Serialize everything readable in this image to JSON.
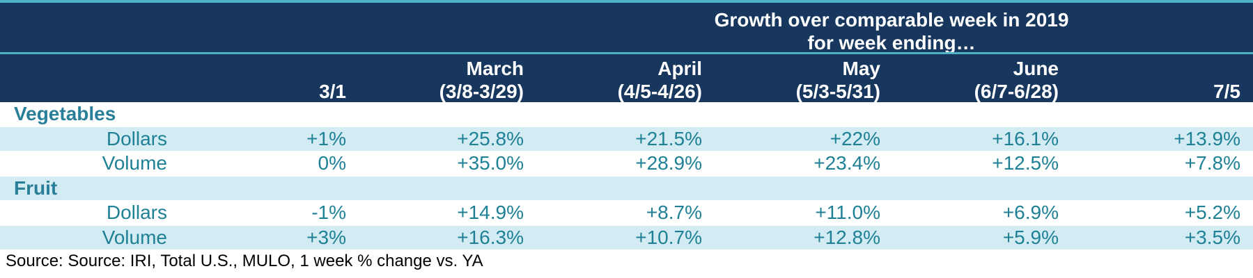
{
  "chart_data": {
    "type": "table",
    "title": "Growth over comparable week in 2019 for week ending…",
    "title_line1": "Growth over comparable week in 2019",
    "title_line2": "for week ending…",
    "columns": [
      {
        "line1": "",
        "line2": "3/1"
      },
      {
        "line1": "March",
        "line2": "(3/8-3/29)"
      },
      {
        "line1": "April",
        "line2": "(4/5-4/26)"
      },
      {
        "line1": "May",
        "line2": "(5/3-5/31)"
      },
      {
        "line1": "June",
        "line2": "(6/7-6/28)"
      },
      {
        "line1": "",
        "line2": "7/5"
      }
    ],
    "groups": [
      {
        "name": "Vegetables",
        "rows": [
          {
            "metric": "Dollars",
            "values": [
              "+1%",
              "+25.8%",
              "+21.5%",
              "+22%",
              "+16.1%",
              "+13.9%"
            ]
          },
          {
            "metric": "Volume",
            "values": [
              "0%",
              "+35.0%",
              "+28.9%",
              "+23.4%",
              "+12.5%",
              "+7.8%"
            ]
          }
        ]
      },
      {
        "name": "Fruit",
        "rows": [
          {
            "metric": "Dollars",
            "values": [
              "-1%",
              "+14.9%",
              "+8.7%",
              "+11.0%",
              "+6.9%",
              "+5.2%"
            ]
          },
          {
            "metric": "Volume",
            "values": [
              "+3%",
              "+16.3%",
              "+10.7%",
              "+12.8%",
              "+5.9%",
              "+3.5%"
            ]
          }
        ]
      }
    ],
    "source": "Source: Source: IRI, Total U.S., MULO, 1 week % change vs. YA"
  },
  "colors": {
    "header_bg": "#17375e",
    "accent_line": "#4fb3c8",
    "row_shade": "#d3ebf2",
    "text_teal": "#1f8196"
  }
}
